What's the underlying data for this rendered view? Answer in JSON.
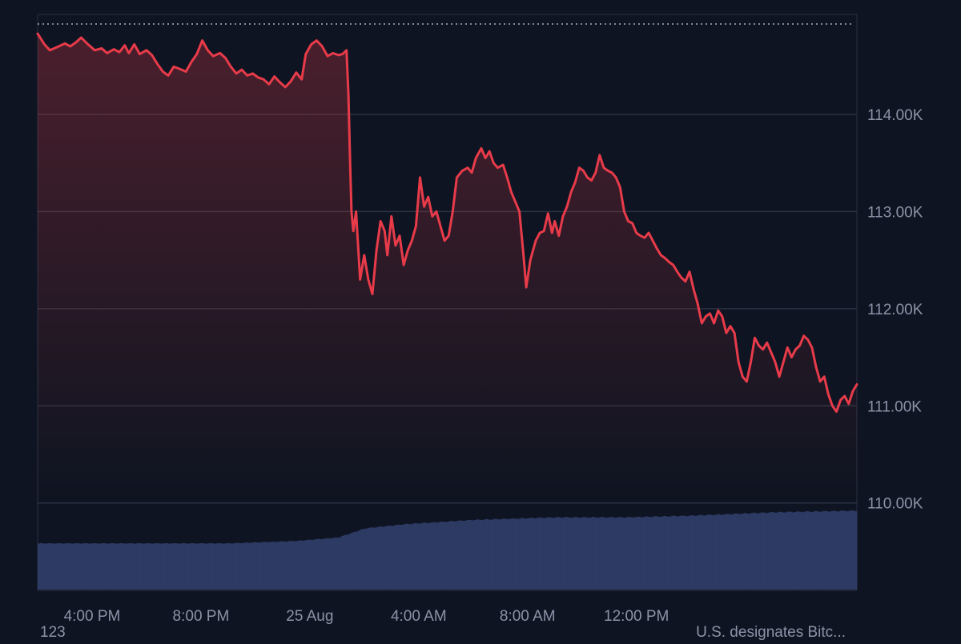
{
  "chart_data": {
    "type": "line",
    "series": [
      {
        "values": [
          [
            0,
            114.83
          ],
          [
            0.25,
            114.72
          ],
          [
            0.45,
            114.66
          ],
          [
            0.7,
            114.69
          ],
          [
            1.0,
            114.73
          ],
          [
            1.2,
            114.7
          ],
          [
            1.4,
            114.74
          ],
          [
            1.6,
            114.79
          ],
          [
            1.85,
            114.72
          ],
          [
            2.1,
            114.66
          ],
          [
            2.35,
            114.68
          ],
          [
            2.55,
            114.63
          ],
          [
            2.8,
            114.67
          ],
          [
            3.0,
            114.64
          ],
          [
            3.2,
            114.71
          ],
          [
            3.35,
            114.63
          ],
          [
            3.55,
            114.72
          ],
          [
            3.75,
            114.62
          ],
          [
            4.0,
            114.66
          ],
          [
            4.2,
            114.61
          ],
          [
            4.4,
            114.52
          ],
          [
            4.6,
            114.44
          ],
          [
            4.8,
            114.4
          ],
          [
            5.0,
            114.49
          ],
          [
            5.2,
            114.47
          ],
          [
            5.45,
            114.44
          ],
          [
            5.65,
            114.54
          ],
          [
            5.85,
            114.62
          ],
          [
            6.05,
            114.76
          ],
          [
            6.25,
            114.66
          ],
          [
            6.45,
            114.6
          ],
          [
            6.7,
            114.63
          ],
          [
            6.9,
            114.58
          ],
          [
            7.1,
            114.49
          ],
          [
            7.3,
            114.42
          ],
          [
            7.5,
            114.46
          ],
          [
            7.7,
            114.4
          ],
          [
            7.9,
            114.42
          ],
          [
            8.1,
            114.38
          ],
          [
            8.3,
            114.36
          ],
          [
            8.5,
            114.31
          ],
          [
            8.7,
            114.39
          ],
          [
            8.9,
            114.33
          ],
          [
            9.1,
            114.28
          ],
          [
            9.3,
            114.34
          ],
          [
            9.5,
            114.43
          ],
          [
            9.7,
            114.36
          ],
          [
            9.85,
            114.62
          ],
          [
            10.05,
            114.72
          ],
          [
            10.25,
            114.76
          ],
          [
            10.45,
            114.7
          ],
          [
            10.65,
            114.6
          ],
          [
            10.85,
            114.63
          ],
          [
            11.05,
            114.61
          ],
          [
            11.2,
            114.62
          ],
          [
            11.35,
            114.66
          ],
          [
            11.42,
            114.2
          ],
          [
            11.48,
            113.5
          ],
          [
            11.53,
            113.0
          ],
          [
            11.6,
            112.8
          ],
          [
            11.7,
            113.0
          ],
          [
            11.85,
            112.3
          ],
          [
            12.0,
            112.55
          ],
          [
            12.15,
            112.3
          ],
          [
            12.3,
            112.15
          ],
          [
            12.45,
            112.6
          ],
          [
            12.6,
            112.9
          ],
          [
            12.75,
            112.8
          ],
          [
            12.85,
            112.55
          ],
          [
            13.0,
            112.95
          ],
          [
            13.15,
            112.65
          ],
          [
            13.3,
            112.75
          ],
          [
            13.45,
            112.45
          ],
          [
            13.6,
            112.6
          ],
          [
            13.75,
            112.7
          ],
          [
            13.9,
            112.85
          ],
          [
            14.05,
            113.35
          ],
          [
            14.2,
            113.05
          ],
          [
            14.35,
            113.15
          ],
          [
            14.5,
            112.95
          ],
          [
            14.65,
            113.0
          ],
          [
            14.8,
            112.85
          ],
          [
            14.95,
            112.7
          ],
          [
            15.1,
            112.75
          ],
          [
            15.25,
            113.0
          ],
          [
            15.4,
            113.35
          ],
          [
            15.6,
            113.42
          ],
          [
            15.8,
            113.45
          ],
          [
            15.95,
            113.4
          ],
          [
            16.1,
            113.55
          ],
          [
            16.3,
            113.65
          ],
          [
            16.45,
            113.55
          ],
          [
            16.6,
            113.62
          ],
          [
            16.75,
            113.5
          ],
          [
            16.9,
            113.45
          ],
          [
            17.1,
            113.48
          ],
          [
            17.25,
            113.35
          ],
          [
            17.4,
            113.2
          ],
          [
            17.55,
            113.1
          ],
          [
            17.7,
            113.0
          ],
          [
            17.85,
            112.55
          ],
          [
            17.95,
            112.22
          ],
          [
            18.1,
            112.5
          ],
          [
            18.3,
            112.7
          ],
          [
            18.45,
            112.78
          ],
          [
            18.6,
            112.8
          ],
          [
            18.75,
            112.98
          ],
          [
            18.9,
            112.78
          ],
          [
            19.0,
            112.9
          ],
          [
            19.15,
            112.75
          ],
          [
            19.3,
            112.95
          ],
          [
            19.45,
            113.05
          ],
          [
            19.6,
            113.2
          ],
          [
            19.75,
            113.3
          ],
          [
            19.9,
            113.45
          ],
          [
            20.05,
            113.42
          ],
          [
            20.2,
            113.35
          ],
          [
            20.35,
            113.32
          ],
          [
            20.5,
            113.4
          ],
          [
            20.65,
            113.58
          ],
          [
            20.8,
            113.45
          ],
          [
            20.95,
            113.42
          ],
          [
            21.1,
            113.4
          ],
          [
            21.25,
            113.35
          ],
          [
            21.4,
            113.25
          ],
          [
            21.55,
            113.0
          ],
          [
            21.7,
            112.9
          ],
          [
            21.85,
            112.88
          ],
          [
            22.0,
            112.78
          ],
          [
            22.15,
            112.75
          ],
          [
            22.3,
            112.73
          ],
          [
            22.45,
            112.78
          ],
          [
            22.6,
            112.7
          ],
          [
            22.75,
            112.62
          ],
          [
            22.9,
            112.55
          ],
          [
            23.05,
            112.52
          ],
          [
            23.2,
            112.48
          ],
          [
            23.35,
            112.45
          ],
          [
            23.5,
            112.38
          ],
          [
            23.65,
            112.32
          ],
          [
            23.8,
            112.28
          ],
          [
            23.95,
            112.38
          ],
          [
            24.1,
            112.2
          ],
          [
            24.25,
            112.05
          ],
          [
            24.4,
            111.85
          ],
          [
            24.55,
            111.92
          ],
          [
            24.7,
            111.95
          ],
          [
            24.85,
            111.85
          ],
          [
            25.0,
            111.98
          ],
          [
            25.15,
            111.92
          ],
          [
            25.3,
            111.75
          ],
          [
            25.45,
            111.82
          ],
          [
            25.6,
            111.75
          ],
          [
            25.75,
            111.45
          ],
          [
            25.9,
            111.3
          ],
          [
            26.05,
            111.25
          ],
          [
            26.2,
            111.45
          ],
          [
            26.35,
            111.7
          ],
          [
            26.5,
            111.62
          ],
          [
            26.65,
            111.58
          ],
          [
            26.8,
            111.65
          ],
          [
            26.95,
            111.55
          ],
          [
            27.1,
            111.45
          ],
          [
            27.25,
            111.3
          ],
          [
            27.4,
            111.45
          ],
          [
            27.55,
            111.6
          ],
          [
            27.7,
            111.5
          ],
          [
            27.85,
            111.58
          ],
          [
            28.0,
            111.62
          ],
          [
            28.15,
            111.72
          ],
          [
            28.3,
            111.68
          ],
          [
            28.45,
            111.6
          ],
          [
            28.6,
            111.4
          ],
          [
            28.75,
            111.25
          ],
          [
            28.9,
            111.3
          ],
          [
            29.05,
            111.12
          ],
          [
            29.2,
            111.0
          ],
          [
            29.35,
            110.94
          ],
          [
            29.5,
            111.06
          ],
          [
            29.65,
            111.1
          ],
          [
            29.8,
            111.02
          ],
          [
            29.95,
            111.15
          ],
          [
            30.1,
            111.22
          ]
        ]
      }
    ],
    "y_ticks": [
      "114.00K",
      "113.00K",
      "112.00K",
      "111.00K",
      "110.00K"
    ],
    "y_tick_values": [
      114,
      113,
      112,
      111,
      110
    ],
    "ylim": [
      109.1,
      114.93
    ],
    "xlim": [
      0,
      30.1
    ],
    "x_ticks": [
      "4:00 PM",
      "8:00 PM",
      "25 Aug",
      "4:00 AM",
      "8:00 AM",
      "12:00 PM"
    ],
    "x_tick_values": [
      2.0,
      6.0,
      10.0,
      14.0,
      18.0,
      22.0
    ],
    "start_value": 114.93,
    "volume": {
      "level": [
        [
          0,
          0.55
        ],
        [
          7,
          0.55
        ],
        [
          9.5,
          0.58
        ],
        [
          11,
          0.62
        ],
        [
          12,
          0.73
        ],
        [
          13.5,
          0.78
        ],
        [
          16,
          0.83
        ],
        [
          19,
          0.86
        ],
        [
          21.5,
          0.86
        ],
        [
          24,
          0.88
        ],
        [
          27,
          0.92
        ],
        [
          30.1,
          0.94
        ]
      ]
    },
    "colors": {
      "line": "#e83b4a",
      "fill": "#e83b4a",
      "volume": "#2d3a63",
      "grid": "#2a3142",
      "axis_text": "#8b93a7",
      "background": "#0e1421"
    }
  },
  "footer": {
    "left_text": "123",
    "right_text": "U.S. designates Bitc..."
  }
}
